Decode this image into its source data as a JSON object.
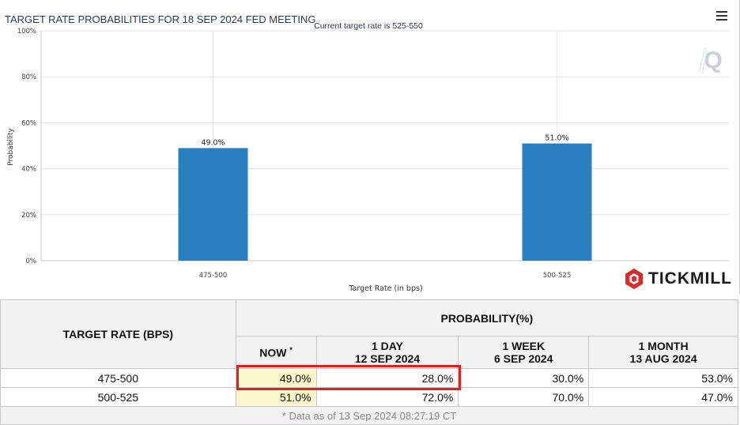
{
  "chart": {
    "title": "TARGET RATE PROBABILITIES FOR 18 SEP 2024 FED MEETING",
    "subtitle": "Current target rate is 525-550",
    "brand": "TICKMILL",
    "watermark": "Q",
    "menu_icon": "hamburger-menu-icon"
  },
  "chart_data": {
    "type": "bar",
    "title": "TARGET RATE PROBABILITIES FOR 18 SEP 2024 FED MEETING",
    "subtitle": "Current target rate is 525-550",
    "xlabel": "Target Rate (in bps)",
    "ylabel": "Probability",
    "categories": [
      "475-500",
      "500-525"
    ],
    "values": [
      49.0,
      51.0
    ],
    "data_labels": [
      "49.0%",
      "51.0%"
    ],
    "y_ticks": [
      "0%",
      "20%",
      "40%",
      "60%",
      "80%",
      "100%"
    ],
    "ylim": [
      0,
      100
    ],
    "grid": true,
    "bar_color": "#2a7fc1"
  },
  "table": {
    "target_rate_header": "TARGET RATE (BPS)",
    "probability_header": "PROBABILITY(%)",
    "columns": [
      {
        "line1": "NOW",
        "line2": "",
        "marker": "*"
      },
      {
        "line1": "1 DAY",
        "line2": "12 SEP 2024"
      },
      {
        "line1": "1 WEEK",
        "line2": "6 SEP 2024"
      },
      {
        "line1": "1 MONTH",
        "line2": "13 AUG 2024"
      }
    ],
    "rows": [
      {
        "rate": "475-500",
        "values": [
          "49.0%",
          "28.0%",
          "30.0%",
          "53.0%"
        ]
      },
      {
        "rate": "500-525",
        "values": [
          "51.0%",
          "72.0%",
          "70.0%",
          "47.0%"
        ]
      }
    ],
    "footnote": "* Data as of 13 Sep 2024 08:27:19 CT"
  }
}
